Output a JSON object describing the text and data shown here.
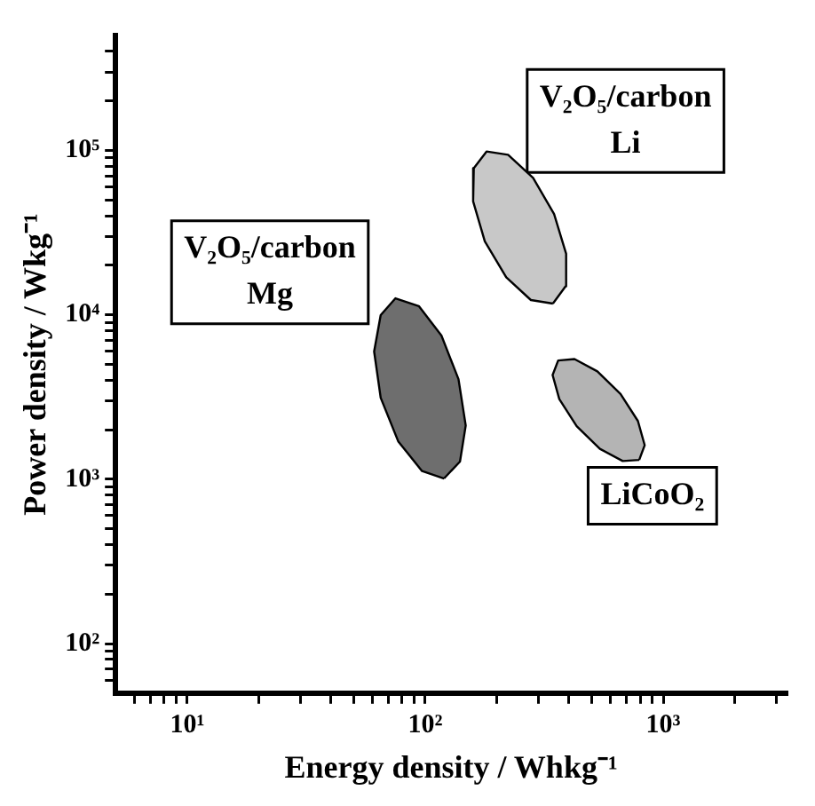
{
  "chart_data": {
    "type": "area",
    "xlabel": "Energy density / Whkg⁻¹",
    "ylabel": "Power density / Wkg⁻¹",
    "xlim": [
      5,
      3300
    ],
    "ylim": [
      50,
      500000
    ],
    "xticks": [
      {
        "value": 6,
        "label": null
      },
      {
        "value": 7,
        "label": null
      },
      {
        "value": 8,
        "label": null
      },
      {
        "value": 9,
        "label": null
      },
      {
        "value": 10,
        "label": "10¹"
      },
      {
        "value": 20,
        "label": null
      },
      {
        "value": 30,
        "label": null
      },
      {
        "value": 40,
        "label": null
      },
      {
        "value": 50,
        "label": null
      },
      {
        "value": 60,
        "label": null
      },
      {
        "value": 70,
        "label": null
      },
      {
        "value": 80,
        "label": null
      },
      {
        "value": 90,
        "label": null
      },
      {
        "value": 100,
        "label": "10²"
      },
      {
        "value": 200,
        "label": null
      },
      {
        "value": 300,
        "label": null
      },
      {
        "value": 400,
        "label": null
      },
      {
        "value": 500,
        "label": null
      },
      {
        "value": 600,
        "label": null
      },
      {
        "value": 700,
        "label": null
      },
      {
        "value": 800,
        "label": null
      },
      {
        "value": 900,
        "label": null
      },
      {
        "value": 1000,
        "label": "10³"
      },
      {
        "value": 2000,
        "label": null
      },
      {
        "value": 3000,
        "label": null
      }
    ],
    "yticks": [
      {
        "value": 60,
        "label": null
      },
      {
        "value": 70,
        "label": null
      },
      {
        "value": 80,
        "label": null
      },
      {
        "value": 90,
        "label": null
      },
      {
        "value": 100,
        "label": "10²"
      },
      {
        "value": 200,
        "label": null
      },
      {
        "value": 300,
        "label": null
      },
      {
        "value": 400,
        "label": null
      },
      {
        "value": 500,
        "label": null
      },
      {
        "value": 600,
        "label": null
      },
      {
        "value": 700,
        "label": null
      },
      {
        "value": 800,
        "label": null
      },
      {
        "value": 900,
        "label": null
      },
      {
        "value": 1000,
        "label": "10³"
      },
      {
        "value": 2000,
        "label": null
      },
      {
        "value": 3000,
        "label": null
      },
      {
        "value": 4000,
        "label": null
      },
      {
        "value": 5000,
        "label": null
      },
      {
        "value": 6000,
        "label": null
      },
      {
        "value": 7000,
        "label": null
      },
      {
        "value": 8000,
        "label": null
      },
      {
        "value": 9000,
        "label": null
      },
      {
        "value": 10000,
        "label": "10⁴"
      },
      {
        "value": 20000,
        "label": null
      },
      {
        "value": 30000,
        "label": null
      },
      {
        "value": 40000,
        "label": null
      },
      {
        "value": 50000,
        "label": null
      },
      {
        "value": 60000,
        "label": null
      },
      {
        "value": 70000,
        "label": null
      },
      {
        "value": 80000,
        "label": null
      },
      {
        "value": 90000,
        "label": null
      },
      {
        "value": 100000,
        "label": "10⁵"
      },
      {
        "value": 200000,
        "label": null
      },
      {
        "value": 300000,
        "label": null
      },
      {
        "value": 400000,
        "label": null
      }
    ],
    "log": "xy",
    "grid": false,
    "legend": false,
    "series": [
      {
        "name": "V₂O₅/carbon Li",
        "color": "#c8c8c8",
        "x": [
          344,
          389,
          391,
          348,
          284,
          223,
          181,
          160,
          159,
          178,
          219,
          278
        ],
        "values": [
          11700,
          14900,
          23500,
          41000,
          68000,
          94000,
          98500,
          78000,
          49000,
          28000,
          16900,
          12300
        ]
      },
      {
        "name": "V₂O₅/carbon Mg",
        "color": "#6e6e6e",
        "x": [
          120,
          140,
          148,
          138,
          117,
          94,
          75,
          65,
          61,
          65,
          77,
          97
        ],
        "values": [
          1010,
          1280,
          2120,
          4060,
          7480,
          11300,
          12600,
          9950,
          5980,
          3130,
          1700,
          1120
        ]
      },
      {
        "name": "LiCoO₂",
        "color": "#b4b4b4",
        "x": [
          793,
          836,
          783,
          662,
          529,
          424,
          362,
          343,
          366,
          433,
          542,
          676
        ],
        "values": [
          1310,
          1610,
          2260,
          3300,
          4530,
          5380,
          5270,
          4300,
          3070,
          2100,
          1530,
          1290
        ]
      }
    ]
  }
}
